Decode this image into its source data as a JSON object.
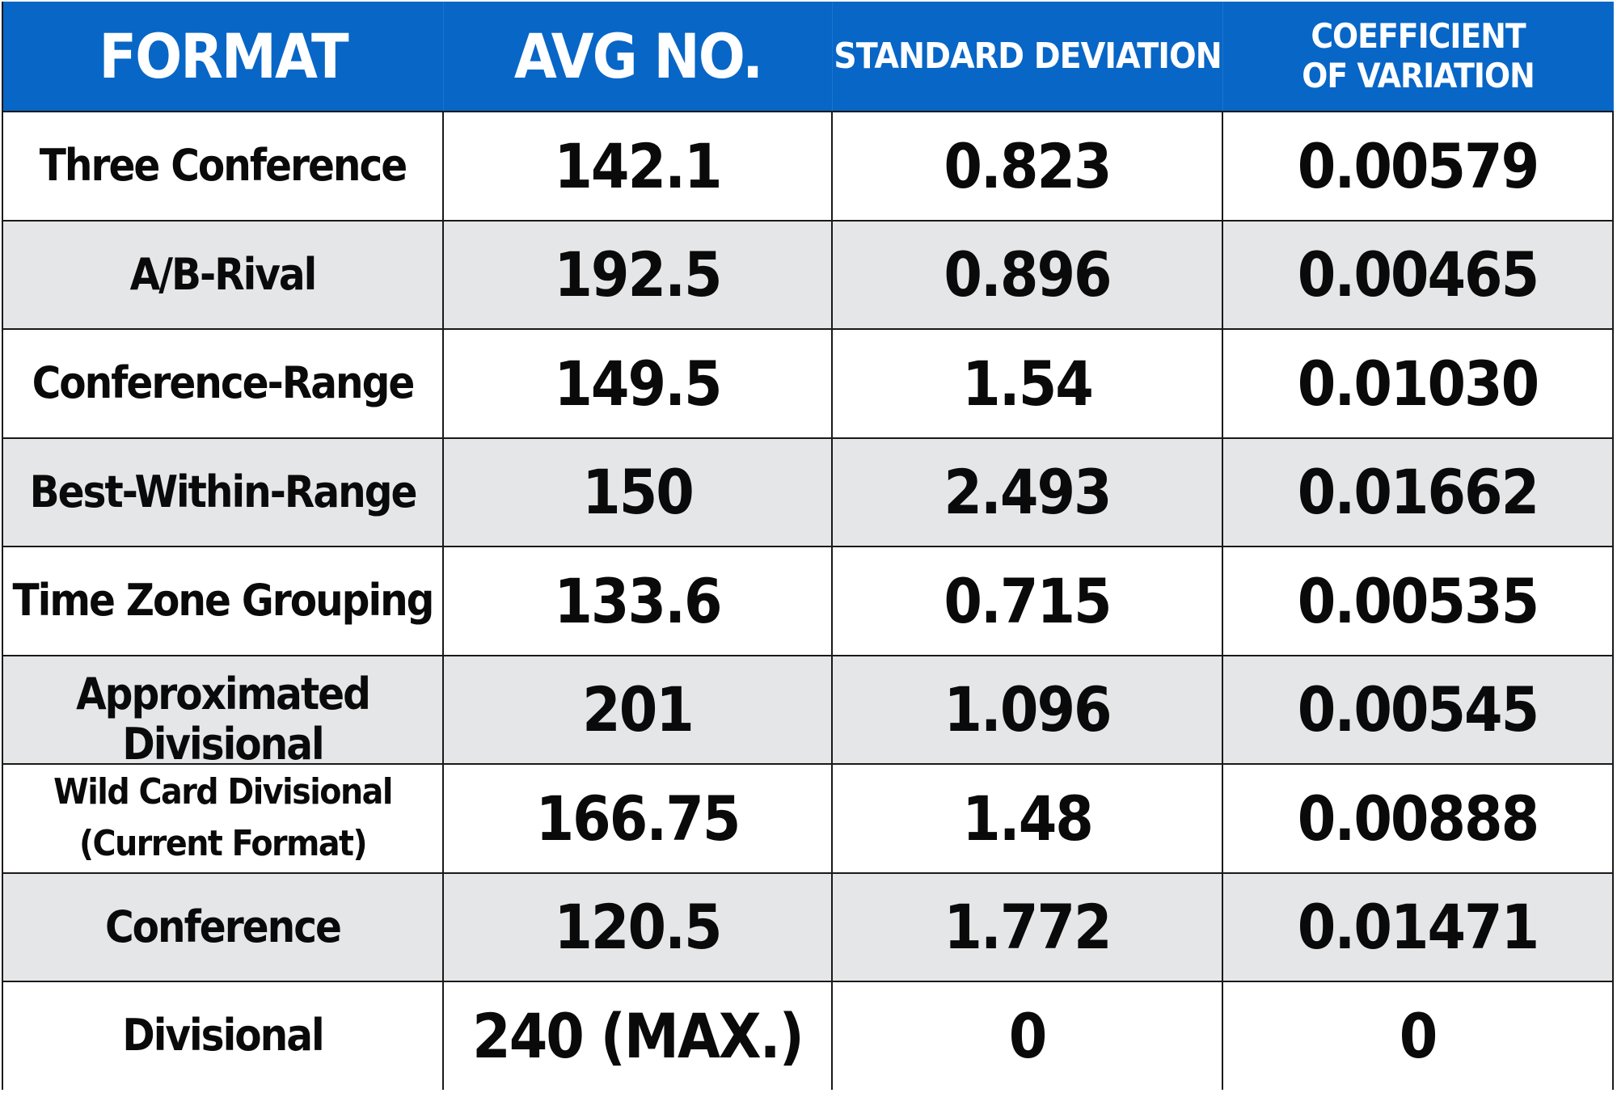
{
  "table": {
    "headers": [
      "FORMAT",
      "AVG NO.",
      "STANDARD DEVIATION",
      "COEFFICIENT OF VARIATION"
    ],
    "rows": [
      {
        "format": "Three Conference",
        "avg": "142.1",
        "std": "0.823",
        "cv": "0.00579"
      },
      {
        "format": "A/B-Rival",
        "avg": "192.5",
        "std": "0.896",
        "cv": "0.00465"
      },
      {
        "format": "Conference-Range",
        "avg": "149.5",
        "std": "1.54",
        "cv": "0.01030"
      },
      {
        "format": "Best-Within-Range",
        "avg": "150",
        "std": "2.493",
        "cv": "0.01662"
      },
      {
        "format": "Time Zone Grouping",
        "avg": "133.6",
        "std": "0.715",
        "cv": "0.00535"
      },
      {
        "format": "Approximated Divisional",
        "avg": "201",
        "std": "1.096",
        "cv": "0.00545"
      },
      {
        "format": "Wild Card Divisional (Current Format)",
        "avg": "166.75",
        "std": "1.48",
        "cv": "0.00888"
      },
      {
        "format": "Conference",
        "avg": "120.5",
        "std": "1.772",
        "cv": "0.01471"
      },
      {
        "format": "Divisional",
        "avg": "240 (MAX.)",
        "std": "0",
        "cv": "0"
      }
    ]
  },
  "colors": {
    "header_bg": "#0866c6",
    "header_text": "#ffffff",
    "row_alt_bg": "#e5e6e8",
    "row_bg": "#ffffff",
    "grid_line": "#1a1a1a"
  }
}
